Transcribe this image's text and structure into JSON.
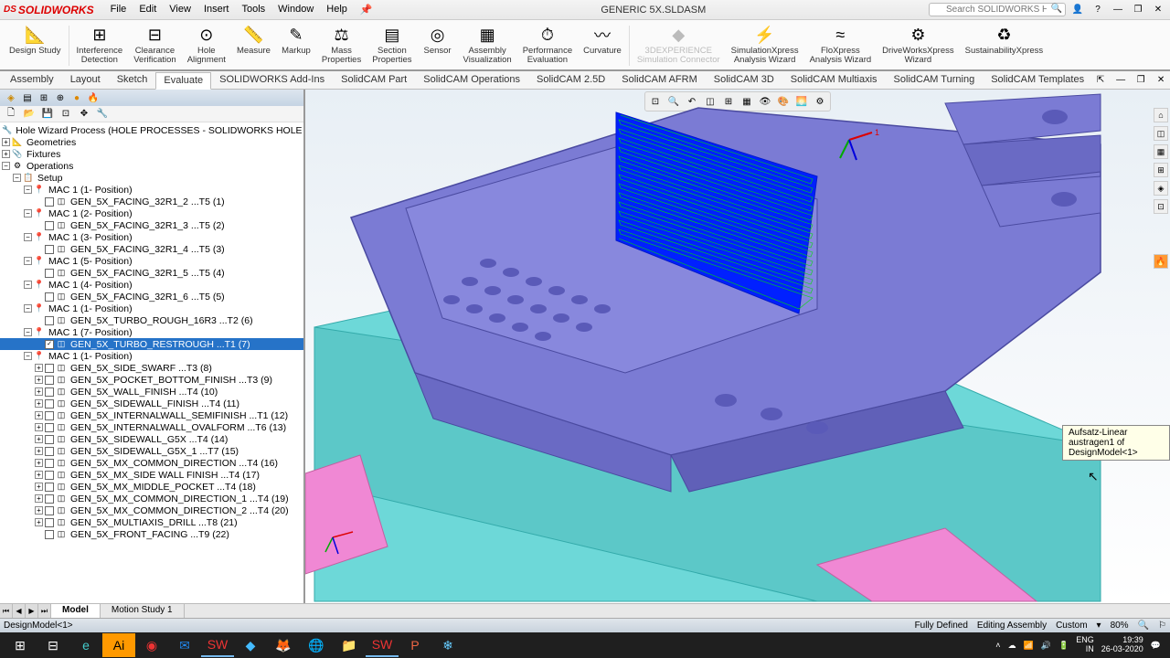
{
  "app": {
    "name": "SOLIDWORKS",
    "document": "GENERIC 5X.SLDASM",
    "search_placeholder": "Search SOLIDWORKS Help"
  },
  "menu": [
    "File",
    "Edit",
    "View",
    "Insert",
    "Tools",
    "Window",
    "Help"
  ],
  "ribbon": [
    {
      "label": "Design Study",
      "icon": "📐"
    },
    {
      "label": "Interference\nDetection",
      "icon": "⊞"
    },
    {
      "label": "Clearance\nVerification",
      "icon": "⊟"
    },
    {
      "label": "Hole\nAlignment",
      "icon": "⊙"
    },
    {
      "label": "Measure",
      "icon": "📏"
    },
    {
      "label": "Markup",
      "icon": "✎"
    },
    {
      "label": "Mass\nProperties",
      "icon": "⚖"
    },
    {
      "label": "Section\nProperties",
      "icon": "▤"
    },
    {
      "label": "Sensor",
      "icon": "◎"
    },
    {
      "label": "Assembly\nVisualization",
      "icon": "▦"
    },
    {
      "label": "Performance\nEvaluation",
      "icon": "⏱"
    },
    {
      "label": "Curvature",
      "icon": "〰"
    },
    {
      "label": "3DEXPERIENCE\nSimulation Connector",
      "icon": "◆",
      "disabled": true
    },
    {
      "label": "SimulationXpress\nAnalysis Wizard",
      "icon": "⚡"
    },
    {
      "label": "FloXpress\nAnalysis Wizard",
      "icon": "≈"
    },
    {
      "label": "DriveWorksXpress\nWizard",
      "icon": "⚙"
    },
    {
      "label": "SustainabilityXpress",
      "icon": "♻"
    }
  ],
  "tabs": [
    "Assembly",
    "Layout",
    "Sketch",
    "Evaluate",
    "SOLIDWORKS Add-Ins",
    "SolidCAM Part",
    "SolidCAM Operations",
    "SolidCAM 2.5D",
    "SolidCAM AFRM",
    "SolidCAM 3D",
    "SolidCAM Multiaxis",
    "SolidCAM Turning",
    "SolidCAM Templates"
  ],
  "active_tab": "Evaluate",
  "tree_root": "Hole Wizard Process (HOLE PROCESSES - SOLIDWORKS HOLE WIZARD - M",
  "tree_fixed": [
    "Geometries",
    "Fixtures",
    "Operations",
    "Setup"
  ],
  "tree_items": [
    {
      "i": 1,
      "t": "MAC 1 (1- Position)",
      "c": "GEN_5X_FACING_32R1_2 ...T5 (1)"
    },
    {
      "i": 2,
      "t": "MAC 1 (2- Position)",
      "c": "GEN_5X_FACING_32R1_3 ...T5 (2)"
    },
    {
      "i": 3,
      "t": "MAC 1 (3- Position)",
      "c": "GEN_5X_FACING_32R1_4 ...T5 (3)"
    },
    {
      "i": 4,
      "t": "MAC 1 (5- Position)",
      "c": "GEN_5X_FACING_32R1_5 ...T5 (4)"
    },
    {
      "i": 5,
      "t": "MAC 1 (4- Position)",
      "c": "GEN_5X_FACING_32R1_6 ...T5 (5)"
    },
    {
      "i": 6,
      "t": "MAC 1 (1- Position)",
      "c": "GEN_5X_TURBO_ROUGH_16R3 ...T2 (6)"
    },
    {
      "i": 7,
      "t": "MAC 1 (7- Position)",
      "c": "GEN_5X_TURBO_RESTROUGH ...T1 (7)",
      "sel": true
    },
    {
      "i": 8,
      "t": "MAC 1 (1- Position)"
    }
  ],
  "tree_leaf": [
    "GEN_5X_SIDE_SWARF ...T3 (8)",
    "GEN_5X_POCKET_BOTTOM_FINISH ...T3 (9)",
    "GEN_5X_WALL_FINISH ...T4 (10)",
    "GEN_5X_SIDEWALL_FINISH ...T4 (11)",
    "GEN_5X_INTERNALWALL_SEMIFINISH ...T1 (12)",
    "GEN_5X_INTERNALWALL_OVALFORM ...T6 (13)",
    "GEN_5X_SIDEWALL_G5X ...T4 (14)",
    "GEN_5X_SIDEWALL_G5X_1 ...T7 (15)",
    "GEN_5X_MX_COMMON_DIRECTION ...T4 (16)",
    "GEN_5X_MX_SIDE WALL FINISH ...T4 (17)",
    "GEN_5X_MX_MIDDLE_POCKET ...T4 (18)",
    "GEN_5X_MX_COMMON_DIRECTION_1 ...T4 (19)",
    "GEN_5X_MX_COMMON_DIRECTION_2 ...T4 (20)",
    "GEN_5X_MULTIAXIS_DRILL ...T8 (21)",
    "GEN_5X_FRONT_FACING ...T9 (22)"
  ],
  "bottom_tabs": [
    "Model",
    "Motion Study 1"
  ],
  "tooltip": "Aufsatz-Linear austragen1 of DesignModel<1>",
  "status": {
    "left": "DesignModel<1>",
    "defined": "Fully Defined",
    "editing": "Editing Assembly",
    "custom": "Custom",
    "zoom": "80%"
  },
  "taskbar": {
    "lang": "ENG",
    "region": "IN",
    "time": "19:39",
    "date": "26-03-2020"
  },
  "colors": {
    "model_purple": "#7b7bd4",
    "model_purple_dark": "#5a5ab8",
    "model_cyan": "#6dd8d8",
    "model_pink": "#f088d4",
    "model_green": "#00e000",
    "model_blue": "#0020ff"
  }
}
